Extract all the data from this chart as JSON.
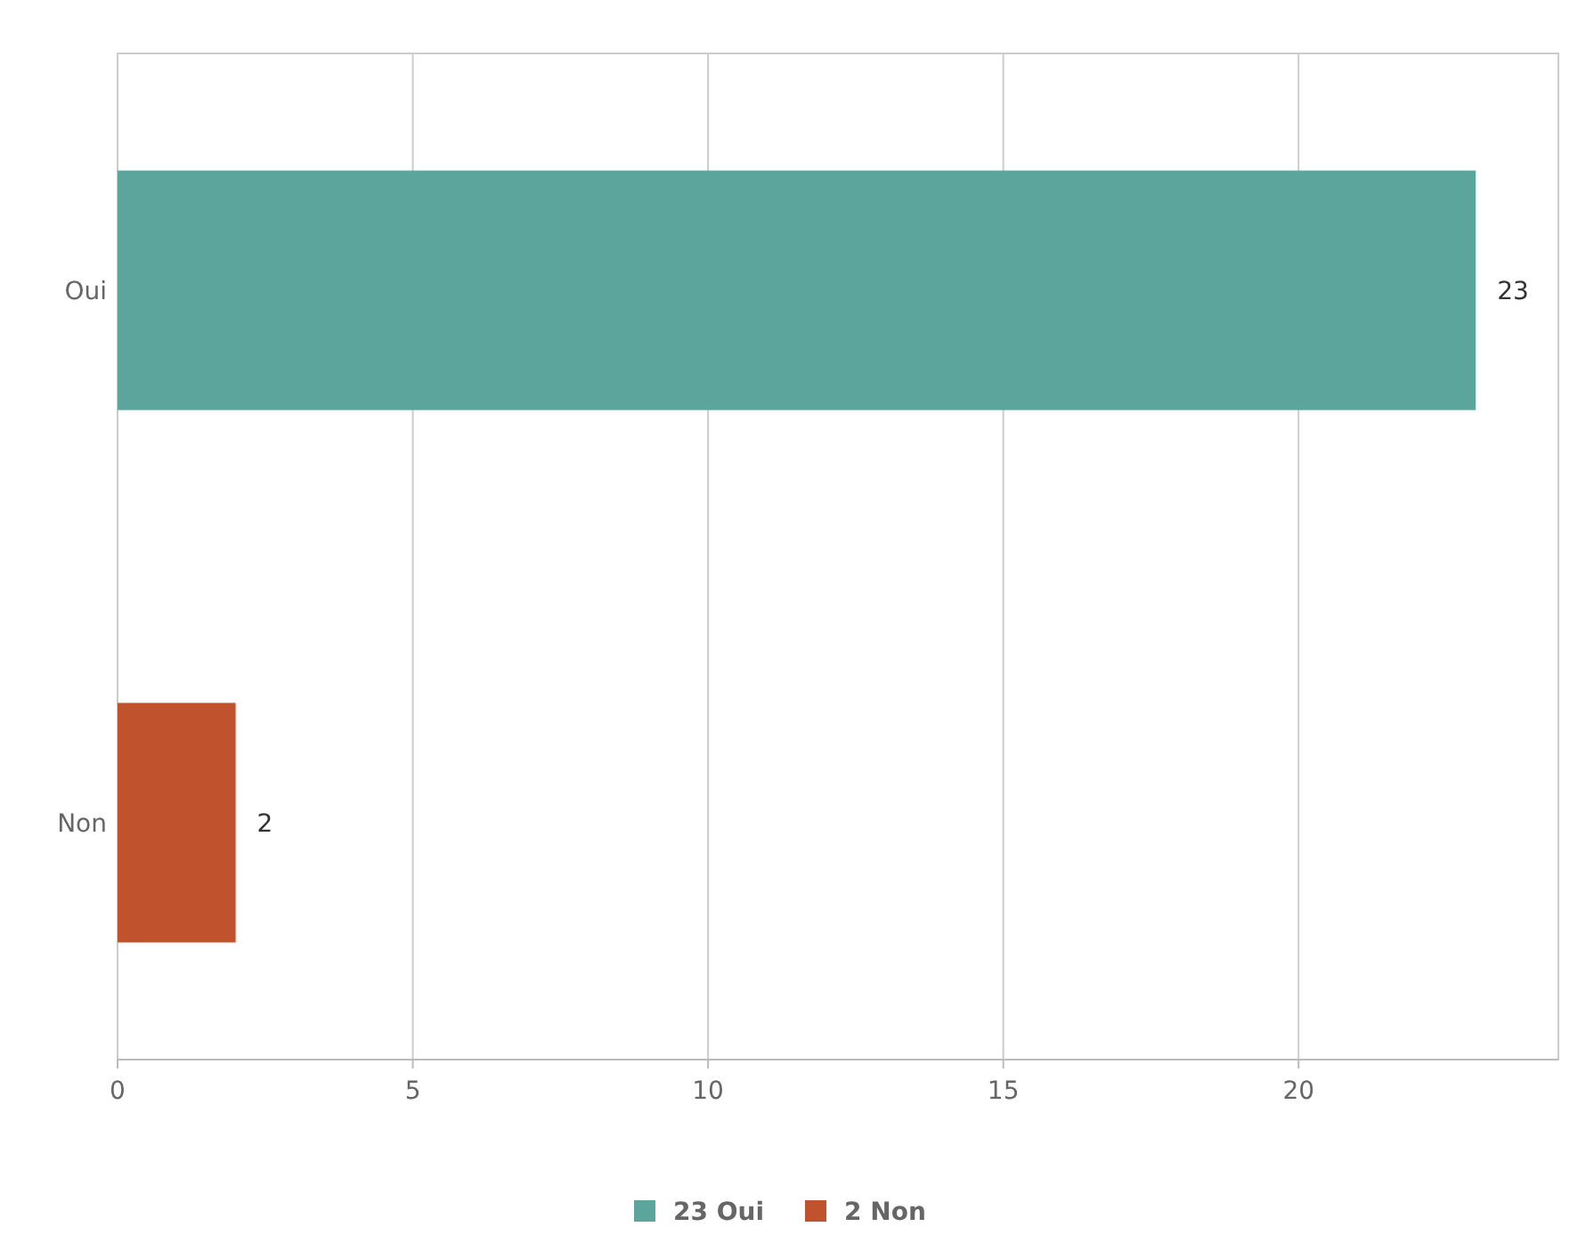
{
  "chart_data": {
    "type": "bar",
    "orientation": "horizontal",
    "categories": [
      "Oui",
      "Non"
    ],
    "series": [
      {
        "name": "23 Oui",
        "color": "#5ba59d",
        "values": [
          23,
          null
        ]
      },
      {
        "name": "2 Non",
        "color": "#c0522e",
        "values": [
          null,
          2
        ]
      }
    ],
    "xlim": [
      0,
      24.4
    ],
    "xticks": [
      0,
      5,
      10,
      15,
      20
    ],
    "grid": "x",
    "legend": "bottom",
    "data_labels": true
  }
}
